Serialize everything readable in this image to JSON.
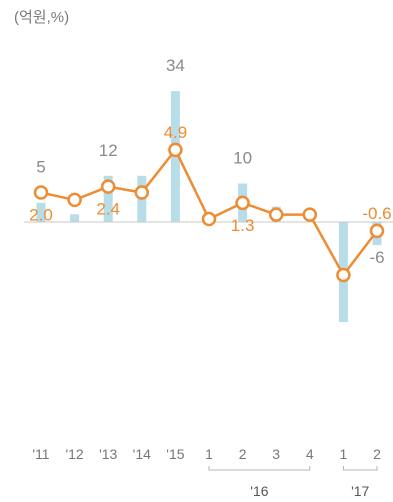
{
  "chart_data": {
    "type": "bar+line",
    "unit_label": "(억원,%)",
    "categories": [
      "'11",
      "'12",
      "'13",
      "'14",
      "'15",
      "1",
      "2",
      "3",
      "4",
      "1",
      "2"
    ],
    "year_groups": [
      {
        "label": "'16",
        "from": 5,
        "to": 8
      },
      {
        "label": "'17",
        "from": 9,
        "to": 10
      }
    ],
    "series": [
      {
        "type": "bar",
        "values": [
          5,
          2,
          12,
          12,
          34,
          0,
          10,
          4,
          0,
          -26,
          -6
        ],
        "data_labels": [
          "5",
          "",
          "12",
          "",
          "34",
          "",
          "10",
          "",
          "",
          "",
          "-6"
        ],
        "color": "#b7dde8"
      },
      {
        "type": "line",
        "values": [
          2.0,
          1.5,
          2.4,
          2.0,
          4.9,
          0.2,
          1.3,
          0.5,
          0.5,
          -3.6,
          -0.6
        ],
        "data_labels": [
          "2.0",
          "",
          "2.4",
          "",
          "4.9",
          "",
          "1.3",
          "",
          "",
          "",
          "-0.6"
        ],
        "color": "#ee8c33"
      }
    ],
    "bar_ylim": [
      -40,
      40
    ],
    "line_ylim": [
      -10,
      11
    ],
    "grid": false,
    "legend": "none"
  }
}
